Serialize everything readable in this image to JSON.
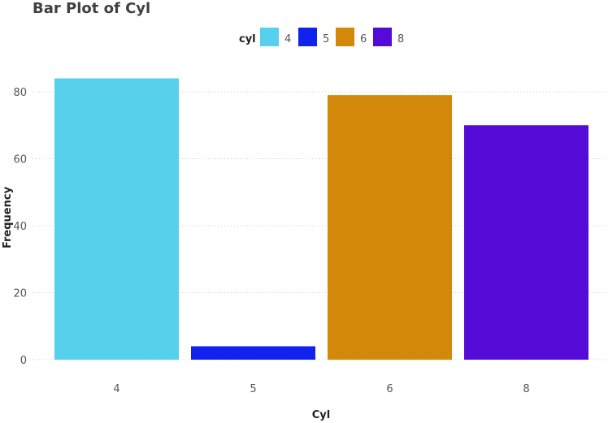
{
  "chart_data": {
    "type": "bar",
    "title": "Bar Plot of Cyl",
    "xlabel": "Cyl",
    "ylabel": "Frequency",
    "legend_title": "cyl",
    "legend_position": "top",
    "categories": [
      "4",
      "5",
      "6",
      "8"
    ],
    "values": [
      84,
      4,
      79,
      70
    ],
    "colors": [
      "#56D0EC",
      "#1122EE",
      "#D4880A",
      "#550BD8"
    ],
    "yticks": [
      0,
      20,
      40,
      60,
      80
    ],
    "ylim": [
      0,
      87
    ],
    "grid": "horizontal-dotted"
  }
}
